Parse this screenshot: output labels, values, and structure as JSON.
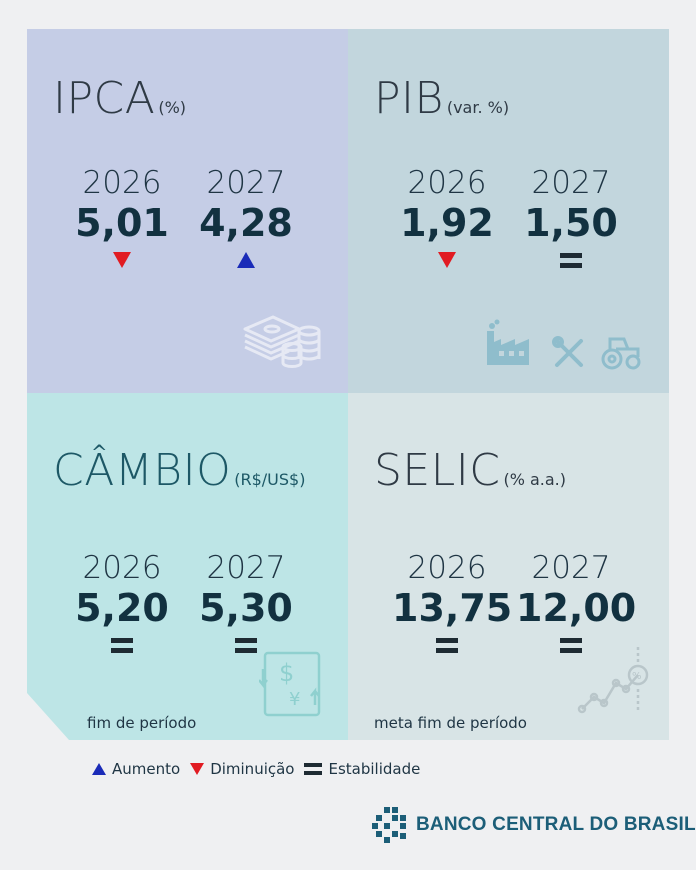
{
  "colors": {
    "ipca_bg": "#c5cde6",
    "pib_bg": "#c2d6dd",
    "cambio_bg": "#bde5e6",
    "selic_bg": "#d8e4e6",
    "increase": "#1a2bb8",
    "decrease": "#e11b22",
    "stable": "#1e2b33",
    "brand": "#1c5e78"
  },
  "panels": {
    "ipca": {
      "title": "IPCA",
      "unit": "(%)",
      "icon": "money-coins-icon",
      "items": [
        {
          "year": "2026",
          "value": "5,01",
          "trend": "decrease"
        },
        {
          "year": "2027",
          "value": "4,28",
          "trend": "increase"
        }
      ]
    },
    "pib": {
      "title": "PIB",
      "unit": "(var. %)",
      "icons": [
        "factory-icon",
        "tools-icon",
        "tractor-icon"
      ],
      "items": [
        {
          "year": "2026",
          "value": "1,92",
          "trend": "decrease"
        },
        {
          "year": "2027",
          "value": "1,50",
          "trend": "stable"
        }
      ]
    },
    "cambio": {
      "title": "CÂMBIO",
      "unit": "(R$/US$)",
      "icon": "currency-exchange-icon",
      "footnote": "fim de período",
      "items": [
        {
          "year": "2026",
          "value": "5,20",
          "trend": "stable"
        },
        {
          "year": "2027",
          "value": "5,30",
          "trend": "stable"
        }
      ]
    },
    "selic": {
      "title": "SELIC",
      "unit": "(% a.a.)",
      "icon": "rate-chart-icon",
      "footnote": "meta fim de período",
      "items": [
        {
          "year": "2026",
          "value": "13,75",
          "trend": "stable"
        },
        {
          "year": "2027",
          "value": "12,00",
          "trend": "stable"
        }
      ]
    }
  },
  "legend": {
    "increase": "Aumento",
    "decrease": "Diminuição",
    "stable": "Estabilidade"
  },
  "brand": {
    "name": "BANCO CENTRAL DO BRASIL",
    "icon": "bcb-logo-icon"
  }
}
